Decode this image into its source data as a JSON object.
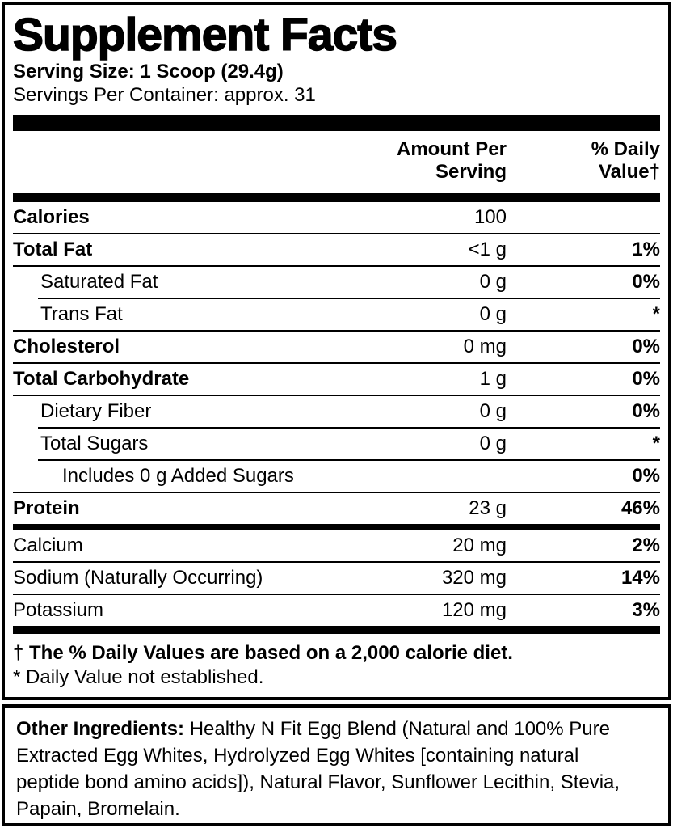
{
  "label": {
    "title": "Supplement Facts",
    "serving_size": "Serving Size: 1 Scoop (29.4g)",
    "servings_per_container": "Servings Per Container: approx. 31"
  },
  "header": {
    "amount_line1": "Amount Per",
    "amount_line2": "Serving",
    "dv_line1": "% Daily",
    "dv_line2": "Value†"
  },
  "rows": [
    {
      "name": "Calories",
      "amount": "100",
      "dv": "",
      "bold": true,
      "indent": 0,
      "sep": "thin"
    },
    {
      "name": "Total Fat",
      "amount": "<1 g",
      "dv": "1%",
      "bold": true,
      "indent": 0,
      "sep": "thin"
    },
    {
      "name": "Saturated Fat",
      "amount": "0 g",
      "dv": "0%",
      "bold": false,
      "indent": 1,
      "sep": "thin-indent"
    },
    {
      "name": "Trans Fat",
      "amount": "0 g",
      "dv": "*",
      "bold": false,
      "indent": 1,
      "sep": "thin"
    },
    {
      "name": "Cholesterol",
      "amount": "0 mg",
      "dv": "0%",
      "bold": true,
      "indent": 0,
      "sep": "thin"
    },
    {
      "name": "Total Carbohydrate",
      "amount": "1 g",
      "dv": "0%",
      "bold": true,
      "indent": 0,
      "sep": "thin"
    },
    {
      "name": "Dietary Fiber",
      "amount": "0 g",
      "dv": "0%",
      "bold": false,
      "indent": 1,
      "sep": "thin-indent"
    },
    {
      "name": "Total Sugars",
      "amount": "0 g",
      "dv": "*",
      "bold": false,
      "indent": 1,
      "sep": "thin-indent"
    },
    {
      "name": "Includes 0 g Added Sugars",
      "amount": "",
      "dv": "0%",
      "bold": false,
      "indent": 2,
      "sep": "thin"
    },
    {
      "name": "Protein",
      "amount": "23 g",
      "dv": "46%",
      "bold": true,
      "indent": 0,
      "sep": "medium"
    },
    {
      "name": "Calcium",
      "amount": "20 mg",
      "dv": "2%",
      "bold": false,
      "indent": 0,
      "sep": "thin"
    },
    {
      "name": "Sodium (Naturally Occurring)",
      "amount": "320 mg",
      "dv": "14%",
      "bold": false,
      "indent": 0,
      "sep": "thin"
    },
    {
      "name": "Potassium",
      "amount": "120 mg",
      "dv": "3%",
      "bold": false,
      "indent": 0,
      "sep": "thick"
    }
  ],
  "footnotes": {
    "daily_value": "† The % Daily Values are based on a 2,000 calorie diet.",
    "not_established": "* Daily Value not established."
  },
  "other_ingredients": {
    "label": "Other Ingredients:",
    "text": " Healthy N Fit Egg Blend (Natural and 100% Pure Extracted Egg Whites, Hydrolyzed Egg Whites [containing natural peptide bond amino acids]), Natural Flavor, Sunflower Lecithin, Stevia, Papain, Bromelain."
  },
  "colors": {
    "text": "#000000",
    "background": "#ffffff",
    "border": "#000000"
  }
}
